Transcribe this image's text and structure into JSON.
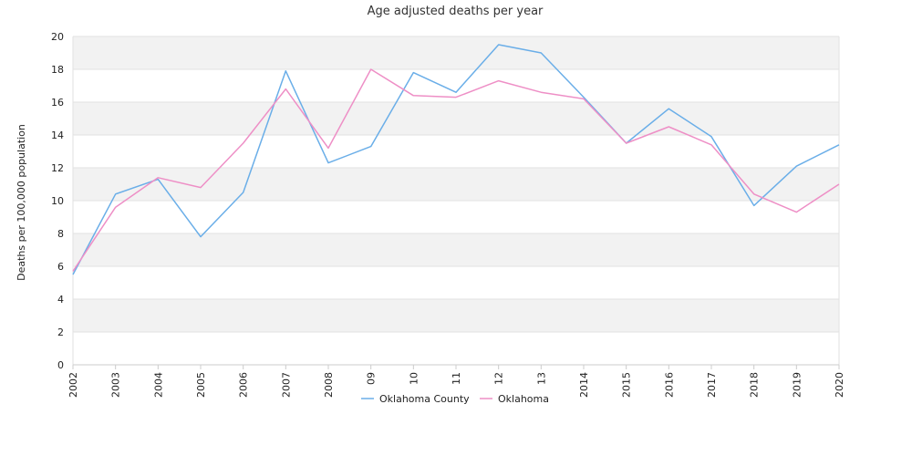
{
  "chart_data": {
    "type": "line",
    "title": "Age adjusted deaths per year",
    "ylabel": "Deaths per 100,000 population",
    "xlabel": "",
    "ylim": [
      0,
      20
    ],
    "yticks": [
      0,
      2,
      4,
      6,
      8,
      10,
      12,
      14,
      16,
      18,
      20
    ],
    "categories": [
      "2002",
      "2003",
      "2004",
      "2005",
      "2006",
      "2007",
      "2008",
      "09",
      "10",
      "11",
      "12",
      "13",
      "2014",
      "2015",
      "2016",
      "2017",
      "2018",
      "2019",
      "2020"
    ],
    "grid": "horizontal",
    "legend_position": "bottom",
    "series": [
      {
        "name": "Oklahoma County",
        "color": "#6aaee8",
        "values": [
          5.5,
          10.4,
          11.3,
          7.8,
          10.5,
          17.9,
          12.3,
          13.3,
          17.8,
          16.6,
          19.5,
          19.0,
          16.3,
          13.5,
          15.6,
          13.9,
          9.7,
          12.1,
          13.4
        ]
      },
      {
        "name": "Oklahoma",
        "color": "#ee8fc6",
        "values": [
          5.7,
          9.6,
          11.4,
          10.8,
          13.5,
          16.8,
          13.2,
          18.0,
          16.4,
          16.3,
          17.3,
          16.6,
          16.2,
          13.5,
          14.5,
          13.4,
          10.4,
          9.3,
          11.0
        ]
      }
    ]
  }
}
